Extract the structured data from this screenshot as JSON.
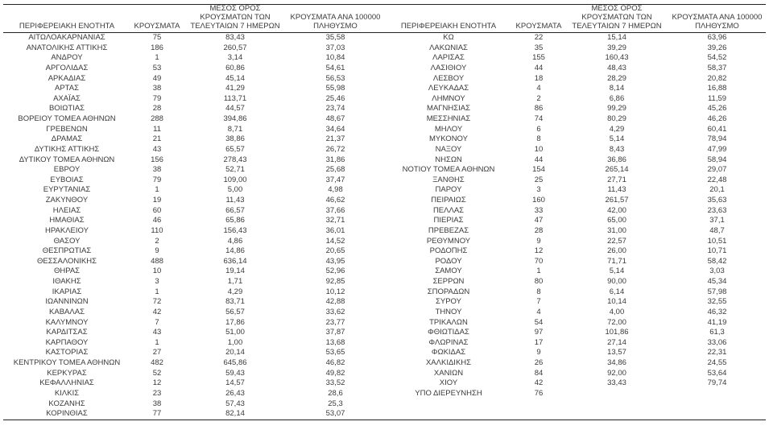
{
  "table": {
    "columns": {
      "region": "ΠΕΡΙΦΕΡΕΙΑΚΗ ΕΝΟΤΗΤΑ",
      "cases": "ΚΡΟΥΣΜΑΤΑ",
      "avg7": "ΜΕΣΟΣ ΟΡΟΣ\nΚΡΟΥΣΜΑΤΩΝ ΤΩΝ\nΤΕΛΕΥΤΑΙΩΝ 7 ΗΜΕΡΩΝ",
      "per100k": "ΚΡΟΥΣΜΑΤΑ ΑΝΑ 100000\nΠΛΗΘΥΣΜΟ"
    },
    "left_rows": [
      [
        "ΑΙΤΩΛΟΑΚΑΡΝΑΝΙΑΣ",
        "75",
        "83,43",
        "35,58"
      ],
      [
        "ΑΝΑΤΟΛΙΚΗΣ ΑΤΤΙΚΗΣ",
        "186",
        "260,57",
        "37,03"
      ],
      [
        "ΑΝΔΡΟΥ",
        "1",
        "3,14",
        "10,84"
      ],
      [
        "ΑΡΓΟΛΙΔΑΣ",
        "53",
        "60,86",
        "54,61"
      ],
      [
        "ΑΡΚΑΔΙΑΣ",
        "49",
        "45,14",
        "56,53"
      ],
      [
        "ΑΡΤΑΣ",
        "38",
        "41,29",
        "55,98"
      ],
      [
        "ΑΧΑΪΑΣ",
        "79",
        "113,71",
        "25,46"
      ],
      [
        "ΒΟΙΩΤΙΑΣ",
        "28",
        "44,57",
        "23,74"
      ],
      [
        "ΒΟΡΕΙΟΥ ΤΟΜΕΑ ΑΘΗΝΩΝ",
        "288",
        "394,86",
        "48,67"
      ],
      [
        "ΓΡΕΒΕΝΩΝ",
        "11",
        "8,71",
        "34,64"
      ],
      [
        "ΔΡΑΜΑΣ",
        "21",
        "38,86",
        "21,37"
      ],
      [
        "ΔΥΤΙΚΗΣ ΑΤΤΙΚΗΣ",
        "43",
        "65,57",
        "26,72"
      ],
      [
        "ΔΥΤΙΚΟΥ ΤΟΜΕΑ ΑΘΗΝΩΝ",
        "156",
        "278,43",
        "31,86"
      ],
      [
        "ΕΒΡΟΥ",
        "38",
        "52,71",
        "25,68"
      ],
      [
        "ΕΥΒΟΙΑΣ",
        "79",
        "109,00",
        "37,47"
      ],
      [
        "ΕΥΡΥΤΑΝΙΑΣ",
        "1",
        "5,00",
        "4,98"
      ],
      [
        "ΖΑΚΥΝΘΟΥ",
        "19",
        "11,43",
        "46,62"
      ],
      [
        "ΗΛΕΙΑΣ",
        "60",
        "66,57",
        "37,66"
      ],
      [
        "ΗΜΑΘΙΑΣ",
        "46",
        "65,86",
        "32,71"
      ],
      [
        "ΗΡΑΚΛΕΙΟΥ",
        "110",
        "156,43",
        "36,01"
      ],
      [
        "ΘΑΣΟΥ",
        "2",
        "4,86",
        "14,52"
      ],
      [
        "ΘΕΣΠΡΩΤΙΑΣ",
        "9",
        "14,86",
        "20,65"
      ],
      [
        "ΘΕΣΣΑΛΟΝΙΚΗΣ",
        "488",
        "636,14",
        "43,95"
      ],
      [
        "ΘΗΡΑΣ",
        "10",
        "19,14",
        "52,96"
      ],
      [
        "ΙΘΑΚΗΣ",
        "3",
        "1,71",
        "92,85"
      ],
      [
        "ΙΚΑΡΙΑΣ",
        "1",
        "4,29",
        "10,12"
      ],
      [
        "ΙΩΑΝΝΙΝΩΝ",
        "72",
        "83,71",
        "42,88"
      ],
      [
        "ΚΑΒΑΛΑΣ",
        "42",
        "56,57",
        "33,62"
      ],
      [
        "ΚΑΛΥΜΝΟΥ",
        "7",
        "17,86",
        "23,77"
      ],
      [
        "ΚΑΡΔΙΤΣΑΣ",
        "43",
        "51,00",
        "37,87"
      ],
      [
        "ΚΑΡΠΑΘΟΥ",
        "1",
        "1,00",
        "13,68"
      ],
      [
        "ΚΑΣΤΟΡΙΑΣ",
        "27",
        "20,14",
        "53,65"
      ],
      [
        "ΚΕΝΤΡΙΚΟΥ ΤΟΜΕΑ ΑΘΗΝΩΝ",
        "482",
        "645,86",
        "46,82"
      ],
      [
        "ΚΕΡΚΥΡΑΣ",
        "52",
        "59,43",
        "49,82"
      ],
      [
        "ΚΕΦΑΛΛΗΝΙΑΣ",
        "12",
        "14,57",
        "33,52"
      ],
      [
        "ΚΙΛΚΙΣ",
        "23",
        "26,43",
        "28,6"
      ],
      [
        "ΚΟΖΑΝΗΣ",
        "38",
        "57,43",
        "25,3"
      ],
      [
        "ΚΟΡΙΝΘΙΑΣ",
        "77",
        "82,14",
        "53,07"
      ]
    ],
    "right_rows": [
      [
        "ΚΩ",
        "22",
        "15,14",
        "63,96"
      ],
      [
        "ΛΑΚΩΝΙΑΣ",
        "35",
        "39,29",
        "39,26"
      ],
      [
        "ΛΑΡΙΣΑΣ",
        "155",
        "160,43",
        "54,52"
      ],
      [
        "ΛΑΣΙΘΙΟΥ",
        "44",
        "48,43",
        "58,37"
      ],
      [
        "ΛΕΣΒΟΥ",
        "18",
        "28,29",
        "20,82"
      ],
      [
        "ΛΕΥΚΑΔΑΣ",
        "4",
        "8,14",
        "16,88"
      ],
      [
        "ΛΗΜΝΟΥ",
        "2",
        "6,86",
        "11,59"
      ],
      [
        "ΜΑΓΝΗΣΙΑΣ",
        "86",
        "99,29",
        "45,26"
      ],
      [
        "ΜΕΣΣΗΝΙΑΣ",
        "74",
        "80,29",
        "46,26"
      ],
      [
        "ΜΗΛΟΥ",
        "6",
        "4,29",
        "60,41"
      ],
      [
        "ΜΥΚΟΝΟΥ",
        "8",
        "5,14",
        "78,94"
      ],
      [
        "ΝΑΞΟΥ",
        "10",
        "8,43",
        "47,99"
      ],
      [
        "ΝΗΣΩΝ",
        "44",
        "36,86",
        "58,94"
      ],
      [
        "ΝΟΤΙΟΥ ΤΟΜΕΑ ΑΘΗΝΩΝ",
        "154",
        "265,14",
        "29,07"
      ],
      [
        "ΞΑΝΘΗΣ",
        "25",
        "27,71",
        "22,48"
      ],
      [
        "ΠΑΡΟΥ",
        "3",
        "11,43",
        "20,1"
      ],
      [
        "ΠΕΙΡΑΙΩΣ",
        "160",
        "261,57",
        "35,63"
      ],
      [
        "ΠΕΛΛΑΣ",
        "33",
        "42,00",
        "23,63"
      ],
      [
        "ΠΙΕΡΙΑΣ",
        "47",
        "65,00",
        "37,1"
      ],
      [
        "ΠΡΕΒΕΖΑΣ",
        "28",
        "31,00",
        "48,7"
      ],
      [
        "ΡΕΘΥΜΝΟΥ",
        "9",
        "22,57",
        "10,51"
      ],
      [
        "ΡΟΔΟΠΗΣ",
        "12",
        "26,00",
        "10,71"
      ],
      [
        "ΡΟΔΟΥ",
        "70",
        "71,71",
        "58,42"
      ],
      [
        "ΣΑΜΟΥ",
        "1",
        "5,14",
        "3,03"
      ],
      [
        "ΣΕΡΡΩΝ",
        "80",
        "90,00",
        "45,34"
      ],
      [
        "ΣΠΟΡΑΔΩΝ",
        "8",
        "6,14",
        "57,98"
      ],
      [
        "ΣΥΡΟΥ",
        "7",
        "10,14",
        "32,55"
      ],
      [
        "ΤΗΝΟΥ",
        "4",
        "4,00",
        "46,32"
      ],
      [
        "ΤΡΙΚΑΛΩΝ",
        "54",
        "72,00",
        "41,19"
      ],
      [
        "ΦΘΙΩΤΙΔΑΣ",
        "97",
        "101,86",
        "61,3"
      ],
      [
        "ΦΛΩΡΙΝΑΣ",
        "17",
        "27,14",
        "33,06"
      ],
      [
        "ΦΩΚΙΔΑΣ",
        "9",
        "13,57",
        "22,31"
      ],
      [
        "ΧΑΛΚΙΔΙΚΗΣ",
        "26",
        "34,86",
        "24,55"
      ],
      [
        "ΧΑΝΙΩΝ",
        "84",
        "92,00",
        "53,64"
      ],
      [
        "ΧΙΟΥ",
        "42",
        "33,43",
        "79,74"
      ],
      [
        "ΥΠΟ ΔΙΕΡΕΥΝΗΣΗ",
        "76",
        "",
        ""
      ]
    ]
  },
  "colors": {
    "text": "#3a3a3a",
    "border": "#222222",
    "background": "#ffffff"
  }
}
